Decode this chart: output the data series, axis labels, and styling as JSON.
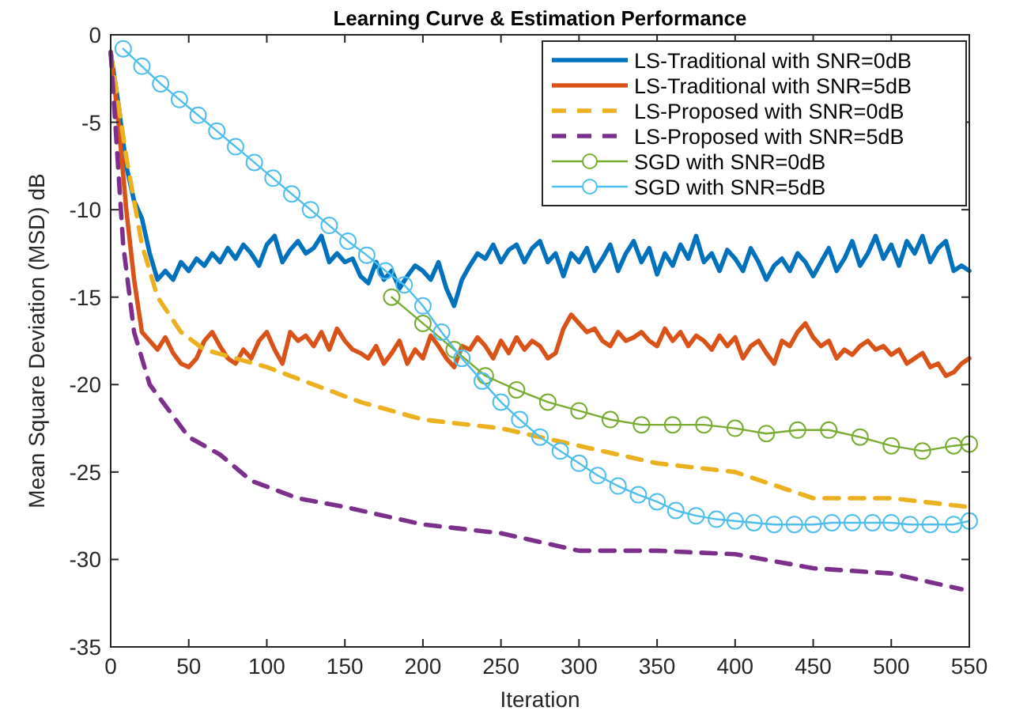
{
  "chart_data": {
    "type": "line",
    "title": "Learning Curve & Estimation Performance",
    "xlabel": "Iteration",
    "ylabel": "Mean Square Deviation (MSD) dB",
    "xlim": [
      0,
      550
    ],
    "ylim": [
      -35,
      0
    ],
    "xticks": [
      0,
      50,
      100,
      150,
      200,
      250,
      300,
      350,
      400,
      450,
      500,
      550
    ],
    "yticks": [
      -35,
      -30,
      -25,
      -20,
      -15,
      -10,
      -5,
      0
    ],
    "grid": false,
    "legend": "top right",
    "x": [
      0,
      5,
      10,
      15,
      20,
      25,
      30,
      35,
      40,
      45,
      50,
      55,
      60,
      65,
      70,
      75,
      80,
      85,
      90,
      95,
      100,
      105,
      110,
      115,
      120,
      125,
      130,
      135,
      140,
      145,
      150,
      155,
      160,
      165,
      170,
      175,
      180,
      185,
      190,
      195,
      200,
      205,
      210,
      215,
      220,
      225,
      230,
      235,
      240,
      245,
      250,
      255,
      260,
      265,
      270,
      275,
      280,
      285,
      290,
      295,
      300,
      305,
      310,
      315,
      320,
      325,
      330,
      335,
      340,
      345,
      350,
      355,
      360,
      365,
      370,
      375,
      380,
      385,
      390,
      395,
      400,
      405,
      410,
      415,
      420,
      425,
      430,
      435,
      440,
      445,
      450,
      455,
      460,
      465,
      470,
      475,
      480,
      485,
      490,
      495,
      500,
      505,
      510,
      515,
      520,
      525,
      530,
      535,
      540,
      545,
      550
    ],
    "series": [
      {
        "name": "LS-Traditional with SNR=0dB",
        "color": "#0072bd",
        "line_style": "solid",
        "marker": "none",
        "values": [
          -1,
          -4,
          -7.5,
          -9.5,
          -10.5,
          -12.5,
          -14,
          -13.5,
          -14,
          -13,
          -13.5,
          -12.8,
          -13.2,
          -12.5,
          -13,
          -12.2,
          -12.8,
          -12,
          -12.5,
          -13.2,
          -12,
          -11.5,
          -13,
          -12.3,
          -11.8,
          -12.5,
          -12.2,
          -11.5,
          -13,
          -12.5,
          -13,
          -12.8,
          -13.8,
          -14.2,
          -13,
          -14,
          -13.5,
          -14.5,
          -13.8,
          -13.2,
          -13.5,
          -14,
          -13,
          -14.5,
          -15.5,
          -14,
          -13.2,
          -12.5,
          -12.8,
          -12,
          -13,
          -12.3,
          -12,
          -13,
          -12.2,
          -11.8,
          -13,
          -12.5,
          -13.8,
          -12.5,
          -13,
          -12.2,
          -13.5,
          -12.8,
          -12,
          -13.5,
          -12.5,
          -11.8,
          -13,
          -12.2,
          -13.7,
          -12.5,
          -13.2,
          -12,
          -12.8,
          -11.5,
          -13,
          -12.5,
          -13.5,
          -12.3,
          -12.8,
          -13.5,
          -12.2,
          -13,
          -14,
          -13.2,
          -12.8,
          -13.5,
          -12.5,
          -13,
          -13.8,
          -13,
          -12.2,
          -13.5,
          -12.8,
          -11.8,
          -13.2,
          -12.5,
          -11.5,
          -12.8,
          -12,
          -13.2,
          -11.8,
          -12.5,
          -11.5,
          -13,
          -12.2,
          -11.8,
          -13.5,
          -13.2,
          -13.5
        ]
      },
      {
        "name": "LS-Traditional with SNR=5dB",
        "color": "#d95319",
        "line_style": "solid",
        "marker": "none",
        "values": [
          -1,
          -5,
          -10,
          -14,
          -17,
          -17.5,
          -18,
          -17.3,
          -18.2,
          -18.8,
          -19,
          -18.5,
          -17.5,
          -17,
          -17.8,
          -18.5,
          -18.8,
          -18,
          -18.5,
          -17.5,
          -17,
          -18,
          -18.8,
          -17,
          -17.5,
          -17.2,
          -17.8,
          -17,
          -18,
          -16.8,
          -17.5,
          -18,
          -18.2,
          -18.5,
          -17.8,
          -18.8,
          -18.2,
          -17.5,
          -18.8,
          -18,
          -18.5,
          -17.2,
          -17.8,
          -18.5,
          -19,
          -17.8,
          -18,
          -17.3,
          -17.8,
          -18.5,
          -17.5,
          -18.2,
          -17.3,
          -18,
          -17.5,
          -17.8,
          -18.5,
          -18.2,
          -16.8,
          -16,
          -16.5,
          -17,
          -16.8,
          -17.5,
          -17.8,
          -17,
          -17.5,
          -17.3,
          -17,
          -17.5,
          -17.8,
          -16.8,
          -17.5,
          -17,
          -17.8,
          -17.2,
          -17.5,
          -18,
          -17.2,
          -17.8,
          -17.3,
          -18.5,
          -17.8,
          -17.5,
          -18.2,
          -18.8,
          -17.5,
          -17.8,
          -17,
          -16.5,
          -17.3,
          -17.8,
          -17.5,
          -18.5,
          -18,
          -18.3,
          -17.8,
          -17.5,
          -18,
          -17.8,
          -18.3,
          -18,
          -18.8,
          -18.5,
          -18.2,
          -19,
          -18.8,
          -19.5,
          -19.3,
          -18.8,
          -18.5
        ]
      },
      {
        "name": "LS-Proposed with SNR=0dB",
        "color": "#edb120",
        "line_style": "dashed",
        "marker": "none",
        "x": [
          0,
          10,
          20,
          30,
          45,
          60,
          80,
          100,
          130,
          160,
          200,
          250,
          300,
          350,
          400,
          450,
          500,
          550
        ],
        "values": [
          -1,
          -7,
          -12,
          -15,
          -17,
          -18,
          -18.5,
          -19,
          -20,
          -21,
          -22,
          -22.5,
          -23.5,
          -24.5,
          -25,
          -26.5,
          -26.5,
          -27
        ]
      },
      {
        "name": "LS-Proposed with SNR=5dB",
        "color": "#7e2f8e",
        "line_style": "dashed",
        "marker": "none",
        "x": [
          0,
          8,
          15,
          25,
          50,
          70,
          90,
          120,
          150,
          200,
          250,
          300,
          350,
          400,
          450,
          500,
          545
        ],
        "values": [
          -1,
          -12,
          -17,
          -20,
          -23,
          -24,
          -25.5,
          -26.5,
          -27,
          -28,
          -28.5,
          -29.5,
          -29.5,
          -29.7,
          -30.5,
          -30.8,
          -31.7
        ]
      },
      {
        "name": "SGD with  SNR=0dB",
        "color": "#77ac30",
        "line_style": "solid",
        "marker": "circle",
        "x": [
          180,
          200,
          220,
          240,
          260,
          280,
          300,
          320,
          340,
          360,
          380,
          400,
          420,
          440,
          460,
          480,
          500,
          520,
          540,
          550
        ],
        "values": [
          -15,
          -16.5,
          -18,
          -19.5,
          -20.3,
          -21,
          -21.5,
          -22,
          -22.3,
          -22.3,
          -22.3,
          -22.5,
          -22.8,
          -22.6,
          -22.6,
          -23,
          -23.5,
          -23.8,
          -23.5,
          -23.4
        ]
      },
      {
        "name": "SGD with SNR=5dB",
        "color": "#4dbeee",
        "line_style": "solid",
        "marker": "circle",
        "x": [
          8,
          20,
          32,
          44,
          56,
          68,
          80,
          92,
          104,
          116,
          128,
          140,
          152,
          164,
          176,
          188,
          200,
          212,
          225,
          238,
          250,
          262,
          275,
          288,
          300,
          312,
          325,
          338,
          350,
          362,
          375,
          388,
          400,
          412,
          425,
          438,
          450,
          462,
          475,
          488,
          500,
          512,
          525,
          540,
          550
        ],
        "values": [
          -0.8,
          -1.8,
          -2.8,
          -3.7,
          -4.6,
          -5.5,
          -6.4,
          -7.3,
          -8.2,
          -9.1,
          -10,
          -10.9,
          -11.8,
          -12.6,
          -13.5,
          -14.3,
          -15.5,
          -17,
          -18.5,
          -19.8,
          -21,
          -22,
          -23,
          -23.8,
          -24.5,
          -25.2,
          -25.8,
          -26.3,
          -26.7,
          -27.2,
          -27.5,
          -27.7,
          -27.8,
          -27.9,
          -28,
          -28,
          -28,
          -27.9,
          -27.9,
          -27.9,
          -27.9,
          -28,
          -28,
          -28,
          -27.8
        ]
      }
    ]
  }
}
